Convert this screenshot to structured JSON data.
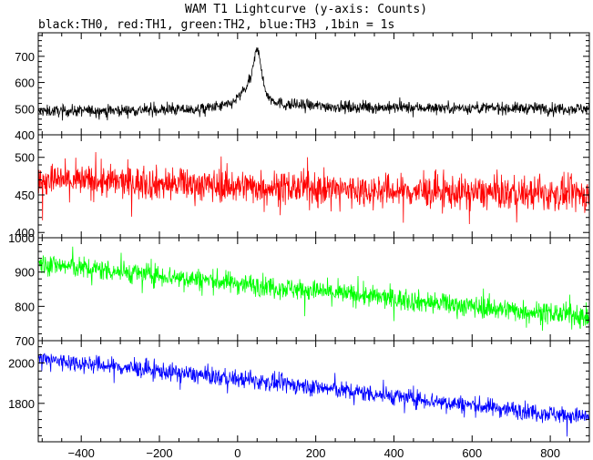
{
  "title": "WAM T1 Lightcurve (y-axis: Counts)",
  "subtitle": "black:TH0, red:TH1, green:TH2, blue:TH3 ,1bin = 1s",
  "chart_data": {
    "type": "line",
    "title": "WAM T1 Lightcurve (y-axis: Counts)",
    "subtitle": "black:TH0, red:TH1, green:TH2, blue:TH3 ,1bin = 1s",
    "x_range": [
      -510,
      900
    ],
    "x_ticks": [
      -400,
      -200,
      0,
      200,
      400,
      600,
      800
    ],
    "x_tick_labels": [
      "−400",
      "−200",
      "0",
      "200",
      "400",
      "600",
      "800"
    ],
    "grid": false,
    "panels": [
      {
        "series_name": "TH0",
        "color": "#000000",
        "ylim": [
          400,
          790
        ],
        "y_ticks": [
          400,
          500,
          600,
          700
        ],
        "y_tick_labels": [
          "400",
          "500",
          "600",
          "700"
        ],
        "noise_amplitude": 28,
        "profile": [
          {
            "x": -510,
            "y": 490
          },
          {
            "x": -100,
            "y": 497
          },
          {
            "x": -20,
            "y": 515
          },
          {
            "x": 0,
            "y": 540
          },
          {
            "x": 20,
            "y": 575
          },
          {
            "x": 35,
            "y": 620
          },
          {
            "x": 45,
            "y": 700
          },
          {
            "x": 50,
            "y": 740
          },
          {
            "x": 55,
            "y": 720
          },
          {
            "x": 65,
            "y": 600
          },
          {
            "x": 80,
            "y": 540
          },
          {
            "x": 120,
            "y": 515
          },
          {
            "x": 300,
            "y": 505
          },
          {
            "x": 900,
            "y": 500
          }
        ]
      },
      {
        "series_name": "TH1",
        "color": "#ff0000",
        "ylim": [
          393,
          530
        ],
        "y_ticks": [
          400,
          450,
          500
        ],
        "y_tick_labels": [
          "400",
          "450",
          "500"
        ],
        "noise_amplitude": 28,
        "profile": [
          {
            "x": -510,
            "y": 470
          },
          {
            "x": 0,
            "y": 462
          },
          {
            "x": 400,
            "y": 455
          },
          {
            "x": 900,
            "y": 450
          }
        ]
      },
      {
        "series_name": "TH2",
        "color": "#00ff00",
        "ylim": [
          700,
          1000
        ],
        "y_ticks": [
          700,
          800,
          900,
          1000
        ],
        "y_tick_labels": [
          "700",
          "800",
          "900",
          "1000"
        ],
        "noise_amplitude": 40,
        "profile": [
          {
            "x": -510,
            "y": 925
          },
          {
            "x": -200,
            "y": 890
          },
          {
            "x": 200,
            "y": 845
          },
          {
            "x": 500,
            "y": 810
          },
          {
            "x": 900,
            "y": 770
          }
        ]
      },
      {
        "series_name": "TH3",
        "color": "#0000ff",
        "ylim": [
          1610,
          2110
        ],
        "y_ticks": [
          1800,
          2000
        ],
        "y_tick_labels": [
          "1800",
          "2000"
        ],
        "noise_amplitude": 55,
        "profile": [
          {
            "x": -510,
            "y": 2020
          },
          {
            "x": -200,
            "y": 1960
          },
          {
            "x": 200,
            "y": 1880
          },
          {
            "x": 600,
            "y": 1790
          },
          {
            "x": 900,
            "y": 1730
          }
        ]
      }
    ]
  }
}
